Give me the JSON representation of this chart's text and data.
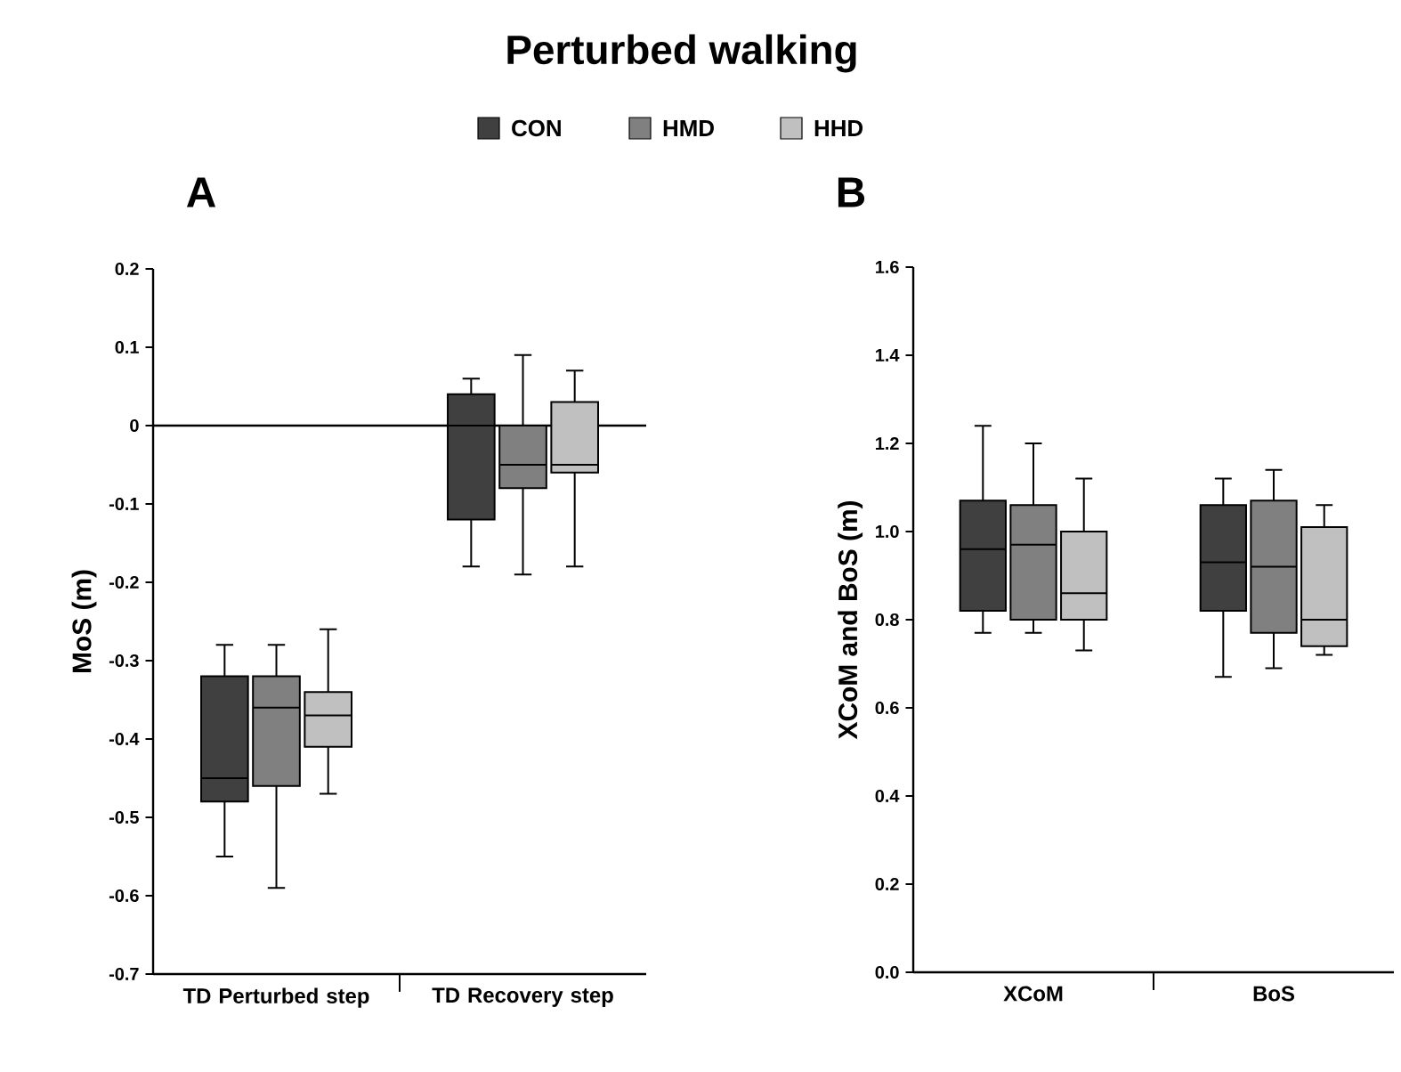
{
  "chart_data": [
    {
      "type": "box",
      "title": "Perturbed walking",
      "subtitle": "A",
      "ylabel": "MoS (m)",
      "legend": "top",
      "categories": [
        "TD Perturbed step",
        "TD Recovery step"
      ],
      "ylim": [
        -0.7,
        0.2
      ],
      "yticks": [
        0.2,
        0.1,
        0,
        -0.1,
        -0.2,
        -0.3,
        -0.4,
        -0.5,
        -0.6,
        -0.7
      ],
      "ref_lines": [
        {
          "axis": "y",
          "value": 0
        }
      ],
      "series": [
        {
          "name": "CON",
          "color": "#404040",
          "boxes": [
            {
              "low": -0.55,
              "q1": -0.48,
              "median": -0.45,
              "q3": -0.32,
              "high": -0.28
            },
            {
              "low": -0.18,
              "q1": -0.12,
              "median": 0,
              "q3": 0.04,
              "high": 0.06
            }
          ]
        },
        {
          "name": "HMD",
          "color": "#808080",
          "boxes": [
            {
              "low": -0.59,
              "q1": -0.46,
              "median": -0.36,
              "q3": -0.32,
              "high": -0.28
            },
            {
              "low": -0.19,
              "q1": -0.08,
              "median": -0.05,
              "q3": 0,
              "high": 0.09
            }
          ]
        },
        {
          "name": "HHD",
          "color": "#c0c0c0",
          "boxes": [
            {
              "low": -0.47,
              "q1": -0.41,
              "median": -0.37,
              "q3": -0.34,
              "high": -0.26
            },
            {
              "low": -0.18,
              "q1": -0.06,
              "median": -0.05,
              "q3": 0.03,
              "high": 0.07
            }
          ]
        }
      ]
    },
    {
      "type": "box",
      "subtitle": "B",
      "ylabel": "XCoM and BoS (m)",
      "categories": [
        "XCoM",
        "BoS"
      ],
      "ylim": [
        0,
        1.6
      ],
      "yticks": [
        {
          "value": 0,
          "label": "0.0"
        },
        0.2,
        0.4,
        0.6,
        0.8,
        {
          "value": 1,
          "label": "1.0"
        },
        1.2,
        1.4,
        1.6
      ],
      "series": [
        {
          "color": "#404040",
          "boxes": [
            {
              "low": 0.77,
              "q1": 0.82,
              "median": 0.96,
              "q3": 1.07,
              "high": 1.24
            },
            {
              "low": 0.67,
              "q1": 0.82,
              "median": 0.93,
              "q3": 1.06,
              "high": 1.12
            }
          ]
        },
        {
          "color": "#808080",
          "boxes": [
            {
              "low": 0.77,
              "q1": 0.8,
              "median": 0.97,
              "q3": 1.06,
              "high": 1.2
            },
            {
              "low": 0.69,
              "q1": 0.77,
              "median": 0.92,
              "q3": 1.07,
              "high": 1.14
            }
          ]
        },
        {
          "color": "#c0c0c0",
          "boxes": [
            {
              "low": 0.73,
              "q1": 0.8,
              "median": 0.86,
              "q3": 1.0,
              "high": 1.12
            },
            {
              "low": 0.72,
              "q1": 0.74,
              "median": 0.8,
              "q3": 1.01,
              "high": 1.06
            }
          ]
        }
      ]
    }
  ]
}
